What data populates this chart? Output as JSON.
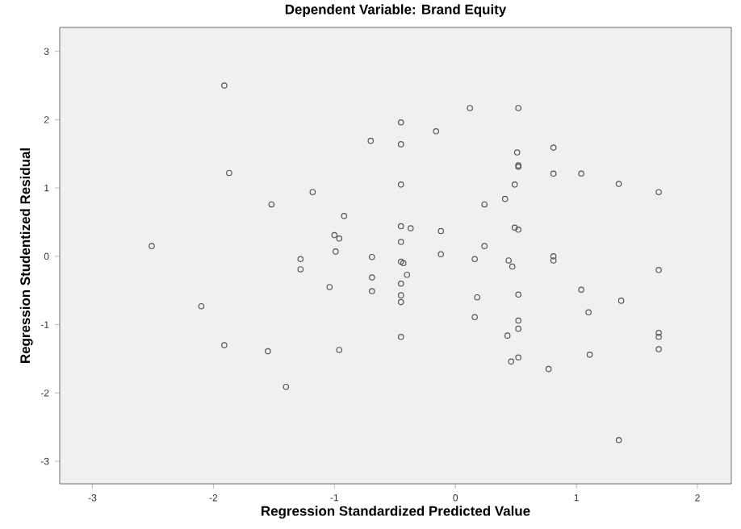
{
  "chart_data": {
    "type": "scatter",
    "title": "Dependent Variable: Brand Equity",
    "xlabel": "Regression Standardized Predicted Value",
    "ylabel": "Regression Studentized Residual",
    "xlim": [
      -3.27,
      2.28
    ],
    "ylim": [
      -3.33,
      3.35
    ],
    "xticks": [
      -3,
      -2,
      -1,
      0,
      1,
      2
    ],
    "yticks": [
      -3,
      -2,
      -1,
      0,
      1,
      2,
      3
    ],
    "marker": "circle",
    "grid": false,
    "series": [
      {
        "color": "#555555",
        "x": [
          -1.91,
          -1.87,
          -1.18,
          -1.52,
          -0.92,
          -1.0,
          -0.96,
          -0.99,
          -2.51,
          -1.28,
          -1.28,
          -1.04,
          -0.7,
          -0.69,
          -0.69,
          -0.69,
          -2.1,
          -1.91,
          -1.55,
          -0.96,
          -1.4,
          0.12,
          0.52,
          -0.45,
          -0.16,
          -0.45,
          0.51,
          0.81,
          0.52,
          0.52,
          0.81,
          1.04,
          -0.45,
          0.49,
          1.35,
          1.68,
          0.24,
          0.41,
          -0.45,
          -0.37,
          -0.12,
          0.49,
          0.52,
          -0.45,
          0.24,
          -0.12,
          0.16,
          0.44,
          0.47,
          0.81,
          0.81,
          -0.45,
          -0.43,
          -0.4,
          -0.45,
          1.68,
          -0.45,
          -0.45,
          0.18,
          0.52,
          1.04,
          1.37,
          1.1,
          0.16,
          0.52,
          0.52,
          0.43,
          -0.45,
          1.68,
          1.68,
          1.68,
          0.52,
          0.46,
          1.11,
          0.77,
          1.35
        ],
        "values": [
          2.5,
          1.22,
          0.94,
          0.76,
          0.59,
          0.31,
          0.26,
          0.07,
          0.15,
          -0.04,
          -0.19,
          -0.45,
          1.69,
          -0.01,
          -0.31,
          -0.51,
          -0.73,
          -1.3,
          -1.39,
          -1.37,
          -1.91,
          2.17,
          2.17,
          1.96,
          1.83,
          1.64,
          1.52,
          1.59,
          1.33,
          1.31,
          1.21,
          1.21,
          1.05,
          1.05,
          1.06,
          0.94,
          0.76,
          0.84,
          0.44,
          0.41,
          0.37,
          0.42,
          0.39,
          0.21,
          0.15,
          0.03,
          -0.04,
          -0.06,
          -0.15,
          0.0,
          -0.06,
          -0.08,
          -0.1,
          -0.27,
          -0.4,
          -0.2,
          -0.57,
          -0.67,
          -0.6,
          -0.56,
          -0.49,
          -0.65,
          -0.82,
          -0.89,
          -0.94,
          -1.06,
          -1.16,
          -1.18,
          -1.12,
          -1.18,
          -1.36,
          -1.48,
          -1.54,
          -1.44,
          -1.65,
          -2.69
        ]
      }
    ]
  }
}
